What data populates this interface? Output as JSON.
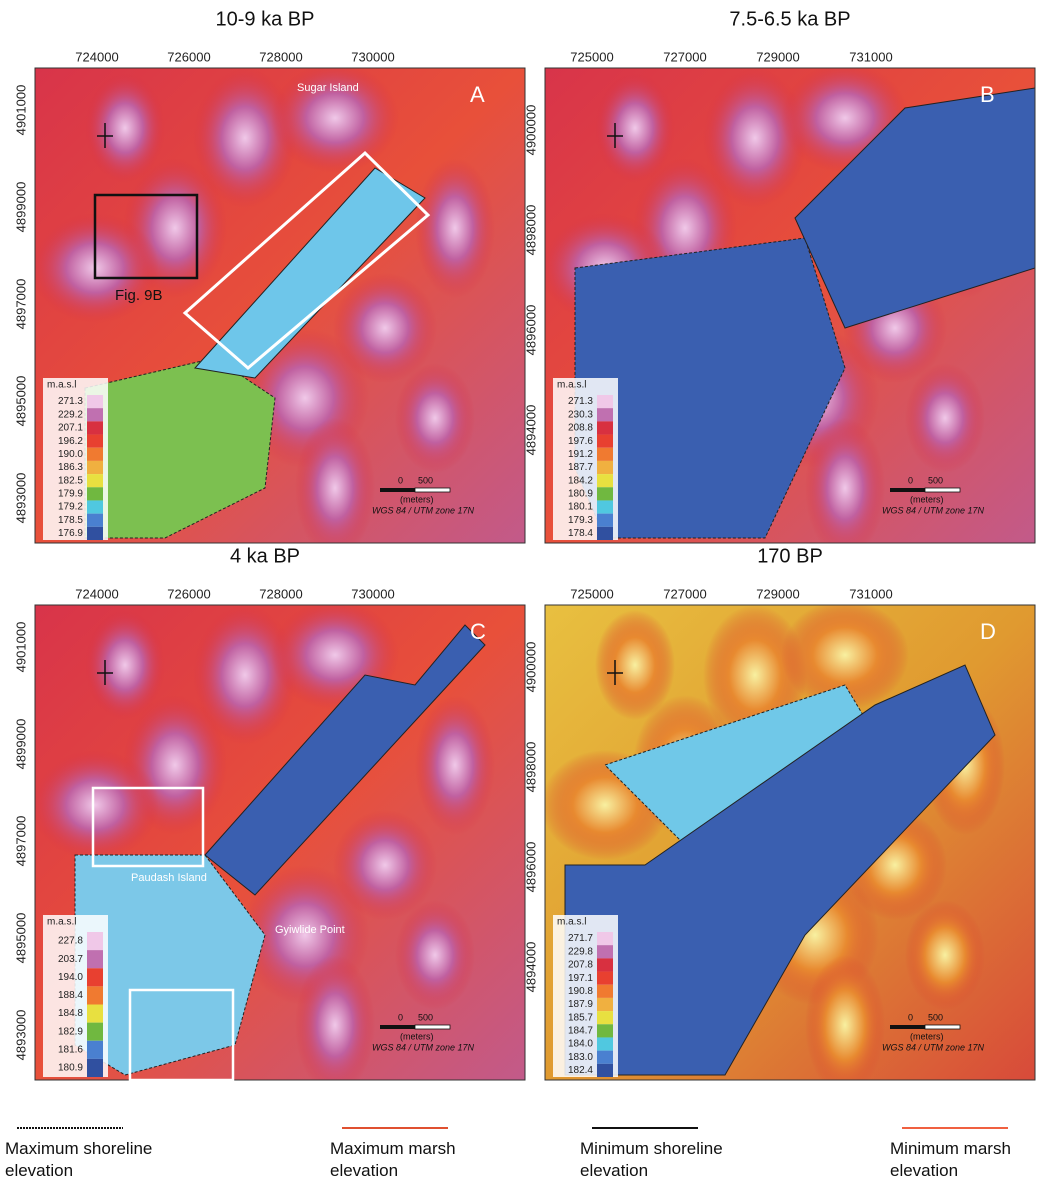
{
  "panels": [
    {
      "title": "10-9 ka BP",
      "letter": "A",
      "x_ticks": [
        "724000",
        "726000",
        "728000",
        "730000"
      ],
      "y_ticks": [
        "4901000",
        "4899000",
        "4897000",
        "4895000",
        "4893000"
      ],
      "legend_title": "m.a.s.l",
      "legend_values": [
        "271.3",
        "229.2",
        "207.1",
        "196.2",
        "190.0",
        "186.3",
        "182.5",
        "179.9",
        "179.2",
        "178.5",
        "176.9"
      ],
      "scale": {
        "zero": "0",
        "length": "500",
        "unit": "(meters)",
        "crs": "WGS 84 / UTM zone 17N"
      },
      "labels": [
        "Sugar Island",
        "Fig. 9B"
      ]
    },
    {
      "title": "7.5-6.5 ka BP",
      "letter": "B",
      "x_ticks": [
        "725000",
        "727000",
        "729000",
        "731000"
      ],
      "y_ticks": [
        "4900000",
        "4898000",
        "4896000",
        "4894000"
      ],
      "legend_title": "m.a.s.l",
      "legend_values": [
        "271.3",
        "230.3",
        "208.8",
        "197.6",
        "191.2",
        "187.7",
        "184.2",
        "180.9",
        "180.1",
        "179.3",
        "178.4"
      ],
      "scale": {
        "zero": "0",
        "length": "500",
        "unit": "(meters)",
        "crs": "WGS 84 / UTM zone 17N"
      },
      "labels": []
    },
    {
      "title": "4 ka BP",
      "letter": "C",
      "x_ticks": [
        "724000",
        "726000",
        "728000",
        "730000"
      ],
      "y_ticks": [
        "4901000",
        "4899000",
        "4897000",
        "4895000",
        "4893000"
      ],
      "legend_title": "m.a.s.l",
      "legend_values": [
        "227.8",
        "203.7",
        "194.0",
        "188.4",
        "184.8",
        "182.9",
        "181.6",
        "180.9"
      ],
      "scale": {
        "zero": "0",
        "length": "500",
        "unit": "(meters)",
        "crs": "WGS 84 / UTM zone 17N"
      },
      "labels": [
        "Paudash Island",
        "Gyiwlide Point"
      ]
    },
    {
      "title": "170 BP",
      "letter": "D",
      "x_ticks": [
        "725000",
        "727000",
        "729000",
        "731000"
      ],
      "y_ticks": [
        "4900000",
        "4898000",
        "4896000",
        "4894000"
      ],
      "legend_title": "m.a.s.l",
      "legend_values": [
        "271.7",
        "229.8",
        "207.8",
        "197.1",
        "190.8",
        "187.9",
        "185.7",
        "184.7",
        "184.0",
        "183.0",
        "182.4"
      ],
      "scale": {
        "zero": "0",
        "length": "500",
        "unit": "(meters)",
        "crs": "WGS 84 / UTM zone 17N"
      },
      "labels": []
    }
  ],
  "legend": [
    "Maximum shoreline elevation",
    "Maximum marsh elevation",
    "Minimum shoreline elevation",
    "Minimum marsh elevation"
  ]
}
